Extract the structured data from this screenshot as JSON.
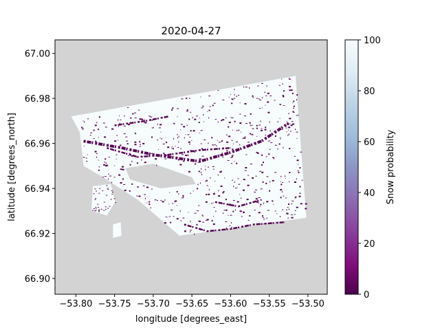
{
  "chart_data": {
    "type": "heatmap",
    "title": "2020-04-27",
    "xlabel": "longitude [degrees_east]",
    "ylabel": "latitude [degrees_north]",
    "xlim": [
      -53.827,
      -53.475
    ],
    "ylim": [
      66.893,
      67.006
    ],
    "xticks": [
      -53.8,
      -53.75,
      -53.7,
      -53.65,
      -53.6,
      -53.55,
      -53.5
    ],
    "xtick_labels": [
      "−53.80",
      "−53.75",
      "−53.70",
      "−53.65",
      "−53.60",
      "−53.55",
      "−53.50"
    ],
    "yticks": [
      66.9,
      66.92,
      66.94,
      66.96,
      66.98,
      67.0
    ],
    "ytick_labels": [
      "66.90",
      "66.92",
      "66.94",
      "66.96",
      "66.98",
      "67.00"
    ],
    "background_color": "#d3d3d3",
    "nodata_color": "#d3d3d3",
    "colorbar": {
      "label": "Snow probability",
      "range": [
        0,
        100
      ],
      "ticks": [
        0,
        20,
        40,
        60,
        80,
        100
      ],
      "tick_labels": [
        "0",
        "20",
        "40",
        "60",
        "80",
        "100"
      ],
      "colormap": "BuPu_r",
      "stops": [
        {
          "v": 0,
          "color": "#4d004b"
        },
        {
          "v": 12,
          "color": "#810f7c"
        },
        {
          "v": 25,
          "color": "#88419d"
        },
        {
          "v": 37,
          "color": "#8c6bb1"
        },
        {
          "v": 50,
          "color": "#8c96c6"
        },
        {
          "v": 62,
          "color": "#9ebcda"
        },
        {
          "v": 75,
          "color": "#bfd3e6"
        },
        {
          "v": 87,
          "color": "#e0ecf4"
        },
        {
          "v": 100,
          "color": "#f7fcfd"
        }
      ]
    },
    "raster": {
      "dominant_value": 100,
      "low_value": 2,
      "main_footprint_lonlat": [
        [
          -53.806,
          66.972
        ],
        [
          -53.516,
          66.99
        ],
        [
          -53.502,
          66.927
        ],
        [
          -53.666,
          66.919
        ],
        [
          -53.72,
          66.935
        ],
        [
          -53.765,
          66.945
        ],
        [
          -53.79,
          66.95
        ],
        [
          -53.795,
          66.965
        ]
      ],
      "nodata_lake_lonlat": [
        [
          -53.736,
          66.949
        ],
        [
          -53.7,
          66.951
        ],
        [
          -53.65,
          66.945
        ],
        [
          -53.645,
          66.942
        ],
        [
          -53.69,
          66.94
        ],
        [
          -53.73,
          66.944
        ]
      ],
      "island_west_lonlat": [
        [
          -53.778,
          66.941
        ],
        [
          -53.755,
          66.942
        ],
        [
          -53.749,
          66.934
        ],
        [
          -53.76,
          66.928
        ],
        [
          -53.78,
          66.93
        ]
      ],
      "island_small_lonlat": [
        [
          -53.752,
          66.924
        ],
        [
          -53.742,
          66.925
        ],
        [
          -53.741,
          66.919
        ],
        [
          -53.752,
          66.918
        ]
      ],
      "low_value_bands_lonlat": [
        [
          [
            -53.79,
            66.961
          ],
          [
            -53.74,
            66.958
          ],
          [
            -53.7,
            66.955
          ],
          [
            -53.64,
            66.952
          ],
          [
            -53.6,
            66.956
          ],
          [
            -53.56,
            66.961
          ],
          [
            -53.525,
            66.969
          ]
        ],
        [
          [
            -53.76,
            66.958
          ],
          [
            -53.72,
            66.954
          ],
          [
            -53.68,
            66.955
          ],
          [
            -53.64,
            66.957
          ],
          [
            -53.6,
            66.958
          ]
        ],
        [
          [
            -53.66,
            66.924
          ],
          [
            -53.63,
            66.921
          ],
          [
            -53.6,
            66.922
          ],
          [
            -53.57,
            66.924
          ],
          [
            -53.53,
            66.925
          ]
        ],
        [
          [
            -53.75,
            66.968
          ],
          [
            -53.71,
            66.97
          ],
          [
            -53.68,
            66.972
          ]
        ],
        [
          [
            -53.62,
            66.934
          ],
          [
            -53.59,
            66.932
          ],
          [
            -53.56,
            66.935
          ]
        ]
      ]
    }
  }
}
